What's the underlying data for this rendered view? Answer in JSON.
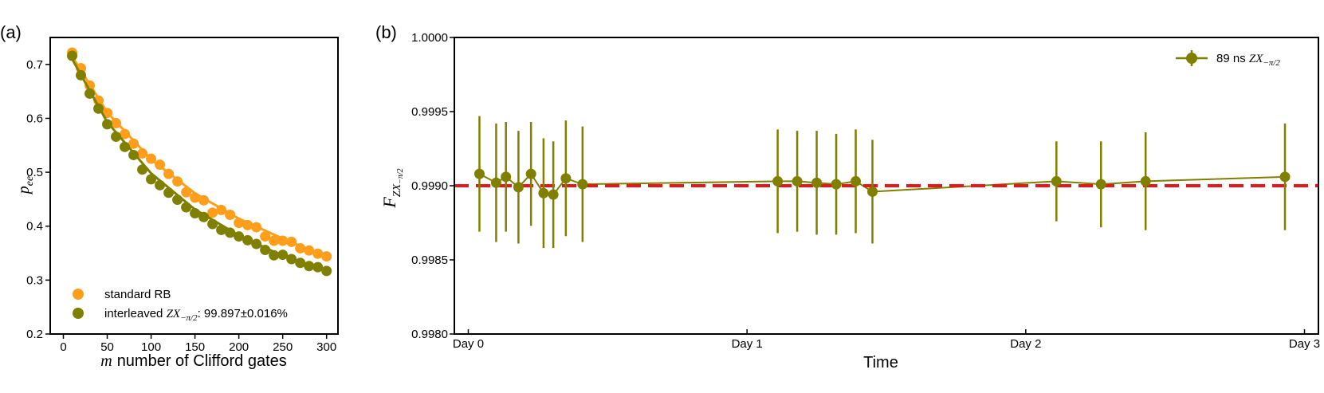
{
  "chart_data": [
    {
      "type": "scatter",
      "panel_label": "(a)",
      "xlabel_var": "m",
      "xlabel_text": "number of Clifford gates",
      "ylabel_var": "p",
      "ylabel_sub": "ee",
      "xlim": [
        -15,
        313
      ],
      "ylim": [
        0.2,
        0.75
      ],
      "xticks": [
        0,
        50,
        100,
        150,
        200,
        250,
        300
      ],
      "xtick_labels": [
        "0",
        "50",
        "100",
        "150",
        "200",
        "250",
        "300"
      ],
      "yticks": [
        0.2,
        0.3,
        0.4,
        0.5,
        0.6,
        0.7
      ],
      "ytick_labels": [
        "0.2",
        "0.3",
        "0.4",
        "0.5",
        "0.6",
        "0.7"
      ],
      "grid": false,
      "legend_position": "bottom-left",
      "series": [
        {
          "name": "standard RB",
          "color": "#ff9e1b",
          "x": [
            10,
            20,
            30,
            40,
            50,
            60,
            70,
            80,
            90,
            100,
            110,
            120,
            130,
            140,
            150,
            160,
            170,
            180,
            190,
            200,
            210,
            220,
            230,
            240,
            250,
            260,
            270,
            280,
            290,
            300
          ],
          "y": [
            0.722,
            0.693,
            0.661,
            0.633,
            0.61,
            0.591,
            0.571,
            0.553,
            0.535,
            0.525,
            0.514,
            0.497,
            0.483,
            0.463,
            0.453,
            0.448,
            0.425,
            0.43,
            0.421,
            0.406,
            0.402,
            0.398,
            0.381,
            0.373,
            0.373,
            0.371,
            0.359,
            0.355,
            0.349,
            0.344
          ],
          "fit_x": [
            10,
            50,
            100,
            150,
            200,
            250,
            300
          ],
          "fit_y": [
            0.715,
            0.611,
            0.524,
            0.461,
            0.414,
            0.377,
            0.343
          ]
        },
        {
          "name_prefix": "interleaved ",
          "name_math": "ZX",
          "name_sub": "−π/2",
          "name_suffix": ": 99.897±0.016%",
          "color": "#808000",
          "x": [
            10,
            20,
            30,
            40,
            50,
            60,
            70,
            80,
            90,
            100,
            110,
            120,
            130,
            140,
            150,
            160,
            170,
            180,
            190,
            200,
            210,
            220,
            230,
            240,
            250,
            260,
            270,
            280,
            290,
            300
          ],
          "y": [
            0.716,
            0.68,
            0.646,
            0.618,
            0.589,
            0.566,
            0.547,
            0.532,
            0.505,
            0.487,
            0.476,
            0.462,
            0.449,
            0.435,
            0.424,
            0.417,
            0.404,
            0.393,
            0.388,
            0.381,
            0.374,
            0.367,
            0.356,
            0.346,
            0.347,
            0.339,
            0.332,
            0.326,
            0.324,
            0.317
          ],
          "fit_x": [
            10,
            50,
            100,
            150,
            200,
            250,
            300
          ],
          "fit_y": [
            0.71,
            0.593,
            0.498,
            0.431,
            0.383,
            0.345,
            0.318
          ]
        }
      ]
    },
    {
      "type": "line",
      "panel_label": "(b)",
      "xlabel": "Time",
      "ylabel_var": "F",
      "ylabel_sub": "ZX",
      "ylabel_subsub": "−π/2",
      "xlim": [
        -0.05,
        3.05
      ],
      "ylim": [
        0.998,
        1.0
      ],
      "xticks": [
        0,
        1,
        2,
        3
      ],
      "xtick_labels": [
        "Day 0",
        "Day 1",
        "Day 2",
        "Day 3"
      ],
      "yticks": [
        0.998,
        0.9985,
        0.999,
        0.9995,
        1.0
      ],
      "ytick_labels": [
        "0.9980",
        "0.9985",
        "0.9990",
        "0.9995",
        "1.0000"
      ],
      "grid": false,
      "legend_position": "top-right",
      "reference_line": {
        "y": 0.999,
        "color": "#e8151b",
        "style": "dashed"
      },
      "series": [
        {
          "name_prefix": "89 ns ",
          "name_math": "ZX",
          "name_sub": "−π/2",
          "color": "#808000",
          "x": [
            0.04,
            0.1,
            0.135,
            0.18,
            0.225,
            0.27,
            0.305,
            0.35,
            0.41,
            1.11,
            1.18,
            1.25,
            1.32,
            1.39,
            1.45,
            2.11,
            2.27,
            2.43,
            2.93
          ],
          "y": [
            0.99908,
            0.99902,
            0.99906,
            0.99899,
            0.99908,
            0.99895,
            0.99894,
            0.99905,
            0.99901,
            0.99903,
            0.99903,
            0.99902,
            0.99901,
            0.99903,
            0.99896,
            0.99903,
            0.99901,
            0.99903,
            0.99906
          ],
          "err": [
            0.00039,
            0.0004,
            0.00037,
            0.00038,
            0.00035,
            0.00037,
            0.00036,
            0.00039,
            0.00039,
            0.00035,
            0.00034,
            0.00035,
            0.00034,
            0.00035,
            0.00035,
            0.00027,
            0.00029,
            0.00033,
            0.00036
          ]
        }
      ]
    }
  ]
}
